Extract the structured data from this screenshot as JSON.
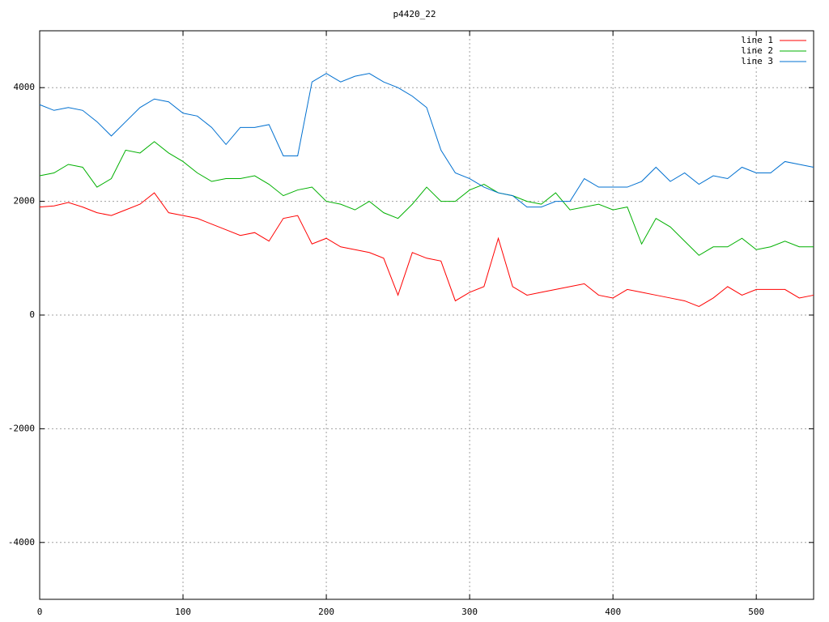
{
  "chart_data": {
    "type": "line",
    "title": "p4420_22",
    "x": [
      0,
      10,
      20,
      30,
      40,
      50,
      60,
      70,
      80,
      90,
      100,
      110,
      120,
      130,
      140,
      150,
      160,
      170,
      180,
      190,
      200,
      210,
      220,
      230,
      240,
      250,
      260,
      270,
      280,
      290,
      300,
      310,
      320,
      330,
      340,
      350,
      360,
      370,
      380,
      390,
      400,
      410,
      420,
      430,
      440,
      450,
      460,
      470,
      480,
      490,
      500,
      510,
      520,
      530,
      540
    ],
    "series": [
      {
        "name": "line 1",
        "color": "#ff0000",
        "values": [
          1900,
          1920,
          1980,
          1900,
          1800,
          1750,
          1850,
          1950,
          2150,
          1800,
          1750,
          1700,
          1600,
          1500,
          1400,
          1450,
          1300,
          1700,
          1750,
          1250,
          1350,
          1200,
          1150,
          1100,
          1000,
          350,
          1100,
          1000,
          950,
          250,
          400,
          500,
          1350,
          500,
          350,
          400,
          450,
          500,
          550,
          350,
          300,
          450,
          400,
          350,
          300,
          250,
          150,
          300,
          500,
          350,
          450,
          450,
          450,
          300,
          350
        ]
      },
      {
        "name": "line 2",
        "color": "#00b000",
        "values": [
          2450,
          2500,
          2650,
          2600,
          2250,
          2400,
          2900,
          2850,
          3050,
          2850,
          2700,
          2500,
          2350,
          2400,
          2400,
          2450,
          2300,
          2100,
          2200,
          2250,
          2000,
          1950,
          1850,
          2000,
          1800,
          1700,
          1950,
          2250,
          2000,
          2000,
          2200,
          2300,
          2150,
          2100,
          2000,
          1950,
          2150,
          1850,
          1900,
          1950,
          1850,
          1900,
          1250,
          1700,
          1550,
          1300,
          1050,
          1200,
          1200,
          1350,
          1150,
          1200,
          1300,
          1200,
          1200
        ]
      },
      {
        "name": "line 3",
        "color": "#0070d0",
        "values": [
          3700,
          3600,
          3650,
          3600,
          3400,
          3150,
          3400,
          3650,
          3800,
          3750,
          3550,
          3500,
          3300,
          3000,
          3300,
          3300,
          3350,
          2800,
          2800,
          4100,
          4250,
          4100,
          4200,
          4250,
          4100,
          4000,
          3850,
          3650,
          2900,
          2500,
          2400,
          2250,
          2150,
          2100,
          1900,
          1900,
          2000,
          2000,
          2400,
          2250,
          2250,
          2250,
          2350,
          2600,
          2350,
          2500,
          2300,
          2450,
          2400,
          2600,
          2500,
          2500,
          2700,
          2650,
          2600
        ]
      }
    ],
    "xlim": [
      0,
      540
    ],
    "ylim": [
      -5000,
      5000
    ],
    "xticks": [
      0,
      100,
      200,
      300,
      400,
      500
    ],
    "yticks": [
      -4000,
      -2000,
      0,
      2000,
      4000
    ],
    "grid": true,
    "legend": "top-right"
  }
}
